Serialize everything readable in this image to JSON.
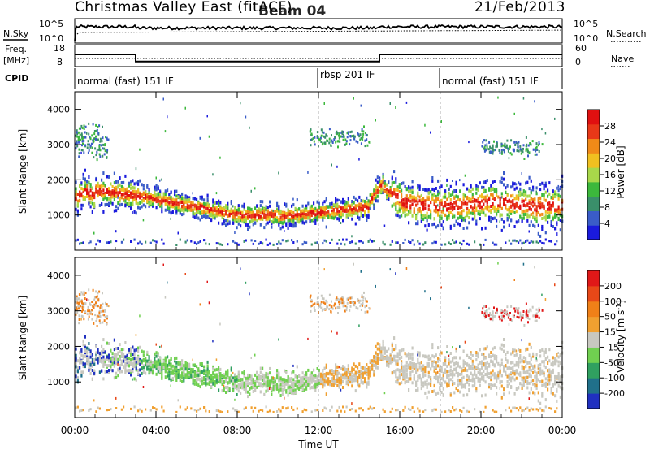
{
  "chart_data": {
    "type": "heatmap",
    "title": "Christmas Valley East (fitACF)",
    "beam": "Beam 04",
    "date": "21/Feb/2013",
    "x_axis": {
      "label": "Time UT",
      "ticks": [
        "00:00",
        "04:00",
        "08:00",
        "12:00",
        "16:00",
        "20:00",
        "00:00"
      ],
      "range_hours": [
        0,
        24
      ]
    },
    "nsky_panel": {
      "left_label": "N.Sky",
      "right_label": "N.Search",
      "left_ticks": [
        "10^5",
        "10^0"
      ],
      "right_ticks": [
        "10^5",
        "10^0"
      ]
    },
    "freq_panel": {
      "left_label_line1": "Freq.",
      "left_label_line2": "[MHz]",
      "right_label": "Nave",
      "left_ticks": [
        "18",
        "8"
      ],
      "right_ticks": [
        "60",
        "0"
      ],
      "segments": [
        {
          "start": 0,
          "end": 3,
          "freq": 14.0
        },
        {
          "start": 3,
          "end": 15,
          "freq": 9.6
        },
        {
          "start": 15,
          "end": 24,
          "freq": 14.0
        }
      ]
    },
    "cpid_panel": {
      "label": "CPID",
      "modes": [
        {
          "start": 0,
          "end": 12,
          "text": "normal (fast) 151 IF"
        },
        {
          "start": 12,
          "end": 18,
          "text": "rbsp 201 IF"
        },
        {
          "start": 18,
          "end": 24,
          "text": "normal (fast) 151 IF"
        }
      ]
    },
    "power_panel": {
      "ylabel": "Slant Range [km]",
      "ylim": [
        0,
        4500
      ],
      "yticks": [
        "1000",
        "2000",
        "3000",
        "4000"
      ],
      "colorbar": {
        "label": "Power [dB]",
        "ticks": [
          "4",
          "8",
          "12",
          "16",
          "20",
          "24",
          "28"
        ],
        "colors": [
          "#1a1add",
          "#3a5cc8",
          "#3a8f6a",
          "#3cb83c",
          "#a8d84a",
          "#f0c020",
          "#f08a18",
          "#e83818",
          "#e01010"
        ]
      }
    },
    "velocity_panel": {
      "ylabel": "Slant Range [km]",
      "ylim": [
        0,
        4500
      ],
      "yticks": [
        "1000",
        "2000",
        "3000",
        "4000"
      ],
      "colorbar": {
        "label": "Velocity [m s^-1]",
        "ticks": [
          "200",
          "100",
          "50",
          "15",
          "-15",
          "-50",
          "-100",
          "-200"
        ],
        "colors": [
          "#2030c0",
          "#20708a",
          "#30a060",
          "#70d050",
          "#c8c8c0",
          "#f0a030",
          "#f08018",
          "#e84818",
          "#e01818"
        ]
      }
    }
  }
}
